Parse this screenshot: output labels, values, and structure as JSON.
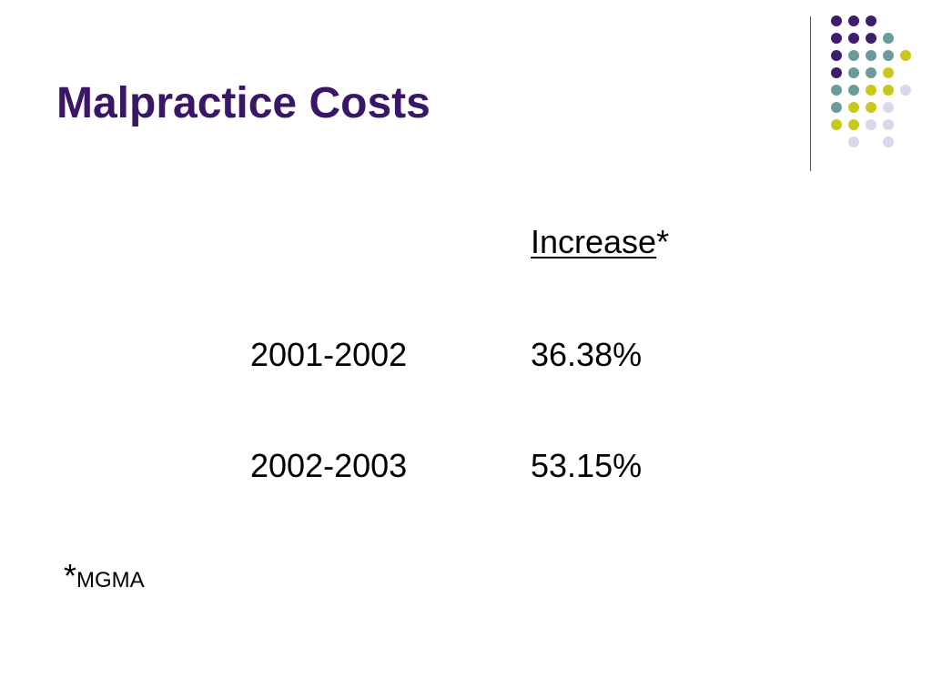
{
  "slide": {
    "title": "Malpractice Costs",
    "header": {
      "word": "Increase",
      "mark": "*"
    },
    "rows": [
      {
        "period": "2001-2002",
        "increase": "36.38%"
      },
      {
        "period": "2002-2003",
        "increase": "53.15%"
      }
    ],
    "footnote": {
      "mark": "*",
      "source": "MGMA"
    }
  },
  "colors": {
    "title": "#3a1666",
    "dot_purple": "#3d1e6d",
    "dot_teal": "#6b9b9b",
    "dot_yellow": "#c8c81e",
    "dot_lavender": "#d8d8ea"
  }
}
